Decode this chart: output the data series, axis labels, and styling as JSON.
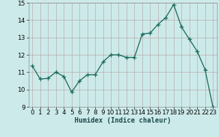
{
  "x": [
    0,
    1,
    2,
    3,
    4,
    5,
    6,
    7,
    8,
    9,
    10,
    11,
    12,
    13,
    14,
    15,
    16,
    17,
    18,
    19,
    20,
    21,
    22,
    23
  ],
  "y": [
    11.35,
    10.6,
    10.65,
    11.0,
    10.75,
    9.85,
    10.5,
    10.85,
    10.85,
    11.6,
    12.0,
    12.0,
    11.85,
    11.85,
    13.2,
    13.25,
    13.75,
    14.15,
    14.9,
    13.6,
    12.9,
    12.2,
    11.15,
    9.0
  ],
  "line_color": "#1a6b5a",
  "marker": "+",
  "marker_size": 4,
  "marker_lw": 1.0,
  "bg_color": "#cdeaea",
  "grid_color": "#b8a8a8",
  "xlabel": "Humidex (Indice chaleur)",
  "xlim": [
    -0.5,
    23.5
  ],
  "ylim": [
    9,
    15
  ],
  "yticks": [
    9,
    10,
    11,
    12,
    13,
    14,
    15
  ],
  "xticks": [
    0,
    1,
    2,
    3,
    4,
    5,
    6,
    7,
    8,
    9,
    10,
    11,
    12,
    13,
    14,
    15,
    16,
    17,
    18,
    19,
    20,
    21,
    22,
    23
  ],
  "xlabel_fontsize": 7,
  "tick_fontsize": 6.5,
  "line_width": 1.0
}
